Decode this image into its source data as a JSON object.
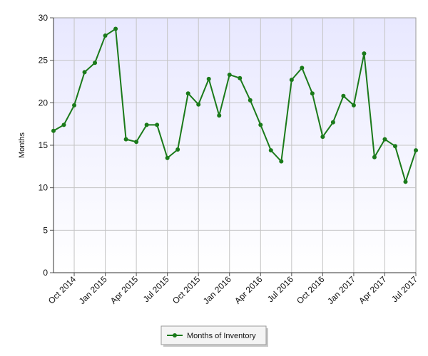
{
  "chart_data": {
    "type": "line",
    "title": "",
    "xlabel": "",
    "ylabel": "Months",
    "ylim": [
      0,
      30
    ],
    "yticks": [
      0,
      5,
      10,
      15,
      20,
      25,
      30
    ],
    "xticks": [
      "Oct 2014",
      "Jan 2015",
      "Apr 2015",
      "Jul 2015",
      "Oct 2015",
      "Jan 2016",
      "Apr 2016",
      "Jul 2016",
      "Oct 2016",
      "Jan 2017",
      "Apr 2017",
      "Jul 2017"
    ],
    "x": [
      "Aug 2014",
      "Sep 2014",
      "Oct 2014",
      "Nov 2014",
      "Dec 2014",
      "Jan 2015",
      "Feb 2015",
      "Mar 2015",
      "Apr 2015",
      "May 2015",
      "Jun 2015",
      "Jul 2015",
      "Aug 2015",
      "Sep 2015",
      "Oct 2015",
      "Nov 2015",
      "Dec 2015",
      "Jan 2016",
      "Feb 2016",
      "Mar 2016",
      "Apr 2016",
      "May 2016",
      "Jun 2016",
      "Jul 2016",
      "Aug 2016",
      "Sep 2016",
      "Oct 2016",
      "Nov 2016",
      "Dec 2016",
      "Jan 2017",
      "Feb 2017",
      "Mar 2017",
      "Apr 2017",
      "May 2017",
      "Jun 2017",
      "Jul 2017"
    ],
    "series": [
      {
        "name": "Months of Inventory",
        "color": "#1a7a1a",
        "values": [
          16.7,
          17.4,
          19.7,
          23.6,
          24.7,
          27.9,
          28.7,
          15.7,
          15.4,
          17.4,
          17.4,
          13.5,
          14.5,
          21.1,
          19.8,
          22.8,
          18.5,
          23.3,
          22.9,
          20.3,
          17.4,
          14.4,
          13.1,
          22.7,
          24.1,
          21.1,
          16.0,
          17.7,
          20.8,
          19.7,
          25.8,
          13.6,
          15.7,
          14.9,
          10.7,
          14.4
        ]
      }
    ],
    "grid": true,
    "legend": "bottom-center"
  }
}
